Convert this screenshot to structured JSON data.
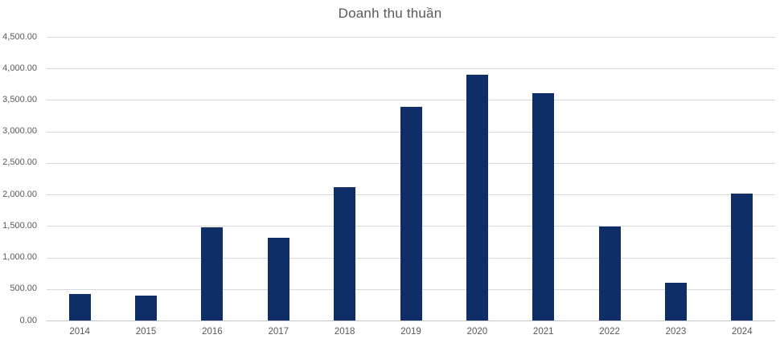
{
  "chart": {
    "colors": {
      "bar": "#0F2D66",
      "gridline": "#D9D9D9",
      "axis_line": "#C6C6C6",
      "tick_label": "#595959",
      "title": "#595959",
      "background": "#FFFFFF"
    }
  },
  "chart_data": {
    "type": "bar",
    "title": "Doanh thu thuần",
    "categories": [
      "2014",
      "2015",
      "2016",
      "2017",
      "2018",
      "2019",
      "2020",
      "2021",
      "2022",
      "2023",
      "2024"
    ],
    "values": [
      425,
      400,
      1475,
      1310,
      2120,
      3395,
      3895,
      3610,
      1490,
      600,
      2015
    ],
    "series_name": "Doanh thu thuần",
    "xlabel": "",
    "ylabel": "",
    "ylim": [
      0,
      4500
    ],
    "ytick_step": 500,
    "ytick_labels": [
      "0.00",
      "500.00",
      "1,000.00",
      "1,500.00",
      "2,000.00",
      "2,500.00",
      "3,000.00",
      "3,500.00",
      "4,000.00",
      "4,500.00"
    ],
    "grid": true,
    "legend": false
  }
}
